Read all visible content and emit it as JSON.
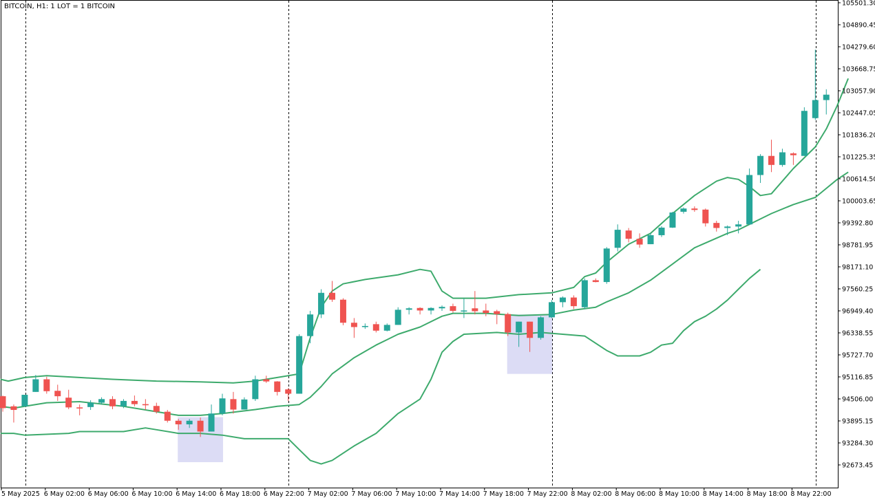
{
  "chart_data": {
    "type": "candlestick",
    "title": "BITCOIN, H1:  1 LOT = 1 BITCOIN",
    "grid": false,
    "ylim": [
      92367.6,
      105501.3
    ],
    "y_ticks": [
      "105501.30",
      "104890.45",
      "104279.60",
      "103668.75",
      "103057.90",
      "102447.05",
      "101836.20",
      "101225.35",
      "100614.50",
      "100003.65",
      "99392.80",
      "98781.95",
      "98171.10",
      "97560.25",
      "96949.40",
      "96338.55",
      "95727.70",
      "95116.85",
      "94506.00",
      "93895.15",
      "93284.30",
      "92673.45"
    ],
    "x_ticks": [
      "5 May 2025",
      "6 May 02:00",
      "6 May 06:00",
      "6 May 10:00",
      "6 May 14:00",
      "6 May 18:00",
      "6 May 22:00",
      "7 May 02:00",
      "7 May 06:00",
      "7 May 10:00",
      "7 May 14:00",
      "7 May 18:00",
      "7 May 22:00",
      "8 May 02:00",
      "8 May 06:00",
      "8 May 10:00",
      "8 May 14:00",
      "8 May 18:00",
      "8 May 22:00"
    ],
    "day_separators": [
      "5 May 2025 22:00",
      "6 May 2025 22:00",
      "7 May 2025 22:00",
      "8 May 2025 22:00"
    ],
    "colors": {
      "bull": "#26a69a",
      "bear": "#ef5350",
      "band": "#3daa6c",
      "highlight": "#dcdcf5",
      "separator": "#000000"
    },
    "candles": [
      {
        "t": "5 May 20:00",
        "o": 94580,
        "h": 94600,
        "l": 94150,
        "c": 94250
      },
      {
        "t": "5 May 21:00",
        "o": 94300,
        "h": 94350,
        "l": 93850,
        "c": 94200
      },
      {
        "t": "5 May 22:00",
        "o": 94300,
        "h": 94600,
        "l": 94290,
        "c": 94620
      },
      {
        "t": "5 May 23:00",
        "o": 94700,
        "h": 95170,
        "l": 94700,
        "c": 95050
      },
      {
        "t": "6 May 00:00",
        "o": 95050,
        "h": 95120,
        "l": 94650,
        "c": 94720
      },
      {
        "t": "6 May 01:00",
        "o": 94730,
        "h": 94900,
        "l": 94450,
        "c": 94580
      },
      {
        "t": "6 May 02:00",
        "o": 94540,
        "h": 94760,
        "l": 94220,
        "c": 94270
      },
      {
        "t": "6 May 03:00",
        "o": 94270,
        "h": 94350,
        "l": 94050,
        "c": 94240
      },
      {
        "t": "6 May 04:00",
        "o": 94280,
        "h": 94470,
        "l": 94200,
        "c": 94400
      },
      {
        "t": "6 May 05:00",
        "o": 94400,
        "h": 94550,
        "l": 94350,
        "c": 94500
      },
      {
        "t": "6 May 06:00",
        "o": 94500,
        "h": 94580,
        "l": 94220,
        "c": 94300
      },
      {
        "t": "6 May 07:00",
        "o": 94300,
        "h": 94500,
        "l": 94250,
        "c": 94450
      },
      {
        "t": "6 May 08:00",
        "o": 94450,
        "h": 94600,
        "l": 94300,
        "c": 94360
      },
      {
        "t": "6 May 09:00",
        "o": 94360,
        "h": 94500,
        "l": 94200,
        "c": 94330
      },
      {
        "t": "6 May 10:00",
        "o": 94310,
        "h": 94400,
        "l": 94100,
        "c": 94150
      },
      {
        "t": "6 May 11:00",
        "o": 94150,
        "h": 94200,
        "l": 93850,
        "c": 93900
      },
      {
        "t": "6 May 12:00",
        "o": 93900,
        "h": 93950,
        "l": 93650,
        "c": 93800
      },
      {
        "t": "6 May 13:00",
        "o": 93800,
        "h": 93950,
        "l": 93700,
        "c": 93900
      },
      {
        "t": "6 May 14:00",
        "o": 93900,
        "h": 93990,
        "l": 93450,
        "c": 93600
      },
      {
        "t": "6 May 15:00",
        "o": 93600,
        "h": 94350,
        "l": 93600,
        "c": 94100
      },
      {
        "t": "6 May 16:00",
        "o": 94100,
        "h": 94650,
        "l": 94050,
        "c": 94520
      },
      {
        "t": "6 May 17:00",
        "o": 94500,
        "h": 94700,
        "l": 94100,
        "c": 94210
      },
      {
        "t": "6 May 18:00",
        "o": 94210,
        "h": 94550,
        "l": 94210,
        "c": 94490
      },
      {
        "t": "6 May 19:00",
        "o": 94500,
        "h": 95150,
        "l": 94450,
        "c": 95050
      },
      {
        "t": "6 May 20:00",
        "o": 95050,
        "h": 95150,
        "l": 94950,
        "c": 94990
      },
      {
        "t": "6 May 21:00",
        "o": 94990,
        "h": 95000,
        "l": 94600,
        "c": 94700
      },
      {
        "t": "6 May 22:00",
        "o": 94770,
        "h": 94800,
        "l": 94450,
        "c": 94650
      },
      {
        "t": "6 May 23:00",
        "o": 94650,
        "h": 96300,
        "l": 94650,
        "c": 96250
      },
      {
        "t": "7 May 00:00",
        "o": 96250,
        "h": 96950,
        "l": 96050,
        "c": 96850
      },
      {
        "t": "7 May 01:00",
        "o": 96850,
        "h": 97550,
        "l": 96750,
        "c": 97450
      },
      {
        "t": "7 May 02:00",
        "o": 97450,
        "h": 97780,
        "l": 97200,
        "c": 97260
      },
      {
        "t": "7 May 03:00",
        "o": 97260,
        "h": 97300,
        "l": 96550,
        "c": 96620
      },
      {
        "t": "7 May 04:00",
        "o": 96620,
        "h": 96750,
        "l": 96200,
        "c": 96500
      },
      {
        "t": "7 May 05:00",
        "o": 96500,
        "h": 96600,
        "l": 96450,
        "c": 96530
      },
      {
        "t": "7 May 06:00",
        "o": 96580,
        "h": 96650,
        "l": 96350,
        "c": 96400
      },
      {
        "t": "7 May 07:00",
        "o": 96400,
        "h": 96600,
        "l": 96380,
        "c": 96560
      },
      {
        "t": "7 May 08:00",
        "o": 96560,
        "h": 97050,
        "l": 96560,
        "c": 96980
      },
      {
        "t": "7 May 09:00",
        "o": 96980,
        "h": 97050,
        "l": 96850,
        "c": 97020
      },
      {
        "t": "7 May 10:00",
        "o": 97030,
        "h": 97050,
        "l": 96850,
        "c": 96960
      },
      {
        "t": "7 May 11:00",
        "o": 96960,
        "h": 97050,
        "l": 96850,
        "c": 97030
      },
      {
        "t": "7 May 12:00",
        "o": 97020,
        "h": 97100,
        "l": 96950,
        "c": 97060
      },
      {
        "t": "7 May 13:00",
        "o": 97080,
        "h": 97150,
        "l": 96900,
        "c": 96950
      },
      {
        "t": "7 May 14:00",
        "o": 96950,
        "h": 97300,
        "l": 96750,
        "c": 96960
      },
      {
        "t": "7 May 15:00",
        "o": 97020,
        "h": 97500,
        "l": 96850,
        "c": 96940
      },
      {
        "t": "7 May 16:00",
        "o": 96960,
        "h": 97150,
        "l": 96800,
        "c": 96890
      },
      {
        "t": "7 May 17:00",
        "o": 96940,
        "h": 96980,
        "l": 96580,
        "c": 96860
      },
      {
        "t": "7 May 18:00",
        "o": 96860,
        "h": 96900,
        "l": 96250,
        "c": 96350
      },
      {
        "t": "7 May 19:00",
        "o": 96350,
        "h": 96650,
        "l": 95950,
        "c": 96650
      },
      {
        "t": "7 May 20:00",
        "o": 96650,
        "h": 96650,
        "l": 95810,
        "c": 96200
      },
      {
        "t": "7 May 21:00",
        "o": 96200,
        "h": 96800,
        "l": 96150,
        "c": 96770
      },
      {
        "t": "7 May 22:00",
        "o": 96770,
        "h": 97250,
        "l": 96750,
        "c": 97190
      },
      {
        "t": "7 May 23:00",
        "o": 97190,
        "h": 97350,
        "l": 97050,
        "c": 97320
      },
      {
        "t": "8 May 00:00",
        "o": 97320,
        "h": 97380,
        "l": 97000,
        "c": 97080
      },
      {
        "t": "8 May 01:00",
        "o": 97050,
        "h": 97850,
        "l": 97000,
        "c": 97800
      },
      {
        "t": "8 May 02:00",
        "o": 97800,
        "h": 97850,
        "l": 97740,
        "c": 97750
      },
      {
        "t": "8 May 03:00",
        "o": 97750,
        "h": 98720,
        "l": 97700,
        "c": 98680
      },
      {
        "t": "8 May 04:00",
        "o": 98700,
        "h": 99350,
        "l": 98600,
        "c": 99200
      },
      {
        "t": "8 May 05:00",
        "o": 99180,
        "h": 99250,
        "l": 98850,
        "c": 98950
      },
      {
        "t": "8 May 06:00",
        "o": 98950,
        "h": 99100,
        "l": 98700,
        "c": 98790
      },
      {
        "t": "8 May 07:00",
        "o": 98800,
        "h": 99100,
        "l": 98800,
        "c": 99050
      },
      {
        "t": "8 May 08:00",
        "o": 99050,
        "h": 99300,
        "l": 99000,
        "c": 99260
      },
      {
        "t": "8 May 09:00",
        "o": 99260,
        "h": 99700,
        "l": 99250,
        "c": 99680
      },
      {
        "t": "8 May 10:00",
        "o": 99700,
        "h": 99820,
        "l": 99650,
        "c": 99790
      },
      {
        "t": "8 May 11:00",
        "o": 99790,
        "h": 99850,
        "l": 99700,
        "c": 99750
      },
      {
        "t": "8 May 12:00",
        "o": 99760,
        "h": 99790,
        "l": 99290,
        "c": 99380
      },
      {
        "t": "8 May 13:00",
        "o": 99390,
        "h": 99450,
        "l": 99150,
        "c": 99250
      },
      {
        "t": "8 May 14:00",
        "o": 99250,
        "h": 99320,
        "l": 99050,
        "c": 99290
      },
      {
        "t": "8 May 15:00",
        "o": 99290,
        "h": 99450,
        "l": 99100,
        "c": 99350
      },
      {
        "t": "8 May 16:00",
        "o": 99350,
        "h": 100900,
        "l": 99350,
        "c": 100720
      },
      {
        "t": "8 May 17:00",
        "o": 100720,
        "h": 101300,
        "l": 100500,
        "c": 101250
      },
      {
        "t": "8 May 18:00",
        "o": 101250,
        "h": 101700,
        "l": 100800,
        "c": 101000
      },
      {
        "t": "8 May 19:00",
        "o": 101000,
        "h": 101450,
        "l": 100950,
        "c": 101350
      },
      {
        "t": "8 May 20:00",
        "o": 101320,
        "h": 101350,
        "l": 101000,
        "c": 101270
      },
      {
        "t": "8 May 21:00",
        "o": 101250,
        "h": 102600,
        "l": 101250,
        "c": 102500
      },
      {
        "t": "8 May 22:00",
        "o": 102300,
        "h": 104200,
        "l": 102250,
        "c": 102800
      },
      {
        "t": "8 May 23:00",
        "o": 102800,
        "h": 103100,
        "l": 102400,
        "c": 102950
      }
    ],
    "bands": {
      "upper": [
        [
          -0.2,
          95050
        ],
        [
          0.5,
          95000
        ],
        [
          2,
          95100
        ],
        [
          4,
          95150
        ],
        [
          7,
          95100
        ],
        [
          10,
          95050
        ],
        [
          14,
          95000
        ],
        [
          18,
          94980
        ],
        [
          21,
          94950
        ],
        [
          23,
          95000
        ],
        [
          25,
          95100
        ],
        [
          27,
          95200
        ],
        [
          28,
          96200
        ],
        [
          29,
          97050
        ],
        [
          30,
          97500
        ],
        [
          31,
          97700
        ],
        [
          33,
          97820
        ],
        [
          36,
          97950
        ],
        [
          38,
          98100
        ],
        [
          39,
          98050
        ],
        [
          40,
          97500
        ],
        [
          41,
          97300
        ],
        [
          44,
          97300
        ],
        [
          47,
          97400
        ],
        [
          50,
          97450
        ],
        [
          52,
          97600
        ],
        [
          53,
          97900
        ],
        [
          54,
          98000
        ],
        [
          55,
          98300
        ],
        [
          57,
          98800
        ],
        [
          59,
          99100
        ],
        [
          61,
          99650
        ],
        [
          63,
          100150
        ],
        [
          65,
          100550
        ],
        [
          66,
          100650
        ],
        [
          67,
          100600
        ],
        [
          68,
          100400
        ],
        [
          69,
          100150
        ],
        [
          70,
          100200
        ],
        [
          72,
          100900
        ],
        [
          74,
          101500
        ],
        [
          75,
          102000
        ],
        [
          76,
          102650
        ],
        [
          77,
          103400
        ]
      ],
      "middle": [
        [
          -0.2,
          94300
        ],
        [
          1,
          94250
        ],
        [
          4,
          94400
        ],
        [
          7,
          94430
        ],
        [
          11,
          94300
        ],
        [
          14,
          94150
        ],
        [
          16,
          94050
        ],
        [
          18,
          94050
        ],
        [
          20,
          94100
        ],
        [
          23,
          94210
        ],
        [
          25,
          94300
        ],
        [
          27,
          94350
        ],
        [
          28,
          94550
        ],
        [
          29,
          94850
        ],
        [
          30,
          95200
        ],
        [
          32,
          95650
        ],
        [
          34,
          96000
        ],
        [
          35,
          96150
        ],
        [
          36,
          96300
        ],
        [
          38,
          96500
        ],
        [
          40,
          96800
        ],
        [
          41,
          96880
        ],
        [
          44,
          96880
        ],
        [
          47,
          96820
        ],
        [
          50,
          96850
        ],
        [
          52,
          96970
        ],
        [
          54,
          97050
        ],
        [
          55,
          97200
        ],
        [
          57,
          97450
        ],
        [
          59,
          97800
        ],
        [
          61,
          98250
        ],
        [
          63,
          98700
        ],
        [
          66,
          99100
        ],
        [
          67,
          99200
        ],
        [
          68,
          99350
        ],
        [
          69,
          99500
        ],
        [
          70,
          99650
        ],
        [
          72,
          99900
        ],
        [
          74,
          100100
        ],
        [
          75,
          100350
        ],
        [
          76,
          100600
        ],
        [
          77,
          100800
        ]
      ],
      "lower": [
        [
          -0.2,
          93550
        ],
        [
          1,
          93550
        ],
        [
          2,
          93500
        ],
        [
          6,
          93550
        ],
        [
          7,
          93600
        ],
        [
          11,
          93600
        ],
        [
          13,
          93700
        ],
        [
          14,
          93650
        ],
        [
          16,
          93550
        ],
        [
          18,
          93550
        ],
        [
          20,
          93500
        ],
        [
          22,
          93400
        ],
        [
          24,
          93400
        ],
        [
          25,
          93400
        ],
        [
          26,
          93400
        ],
        [
          27,
          93100
        ],
        [
          28,
          92800
        ],
        [
          29,
          92700
        ],
        [
          30,
          92800
        ],
        [
          32,
          93200
        ],
        [
          34,
          93550
        ],
        [
          36,
          94100
        ],
        [
          38,
          94500
        ],
        [
          39,
          95050
        ],
        [
          40,
          95800
        ],
        [
          41,
          96100
        ],
        [
          42,
          96300
        ],
        [
          45,
          96350
        ],
        [
          47,
          96300
        ],
        [
          49,
          96350
        ],
        [
          51,
          96300
        ],
        [
          53,
          96250
        ],
        [
          55,
          95850
        ],
        [
          56,
          95700
        ],
        [
          58,
          95700
        ],
        [
          59,
          95800
        ],
        [
          60,
          96000
        ],
        [
          61,
          96050
        ],
        [
          62,
          96400
        ],
        [
          63,
          96650
        ],
        [
          64,
          96800
        ],
        [
          65,
          97000
        ],
        [
          66,
          97250
        ],
        [
          67,
          97550
        ],
        [
          68,
          97850
        ],
        [
          69,
          98100
        ]
      ]
    },
    "highlights": [
      {
        "x0": 16.0,
        "x1": 20.0,
        "y_top": 94000,
        "y_bottom": 92750
      },
      {
        "x0": 46.0,
        "x1": 50.0,
        "y_top": 96850,
        "y_bottom": 95200
      }
    ]
  }
}
